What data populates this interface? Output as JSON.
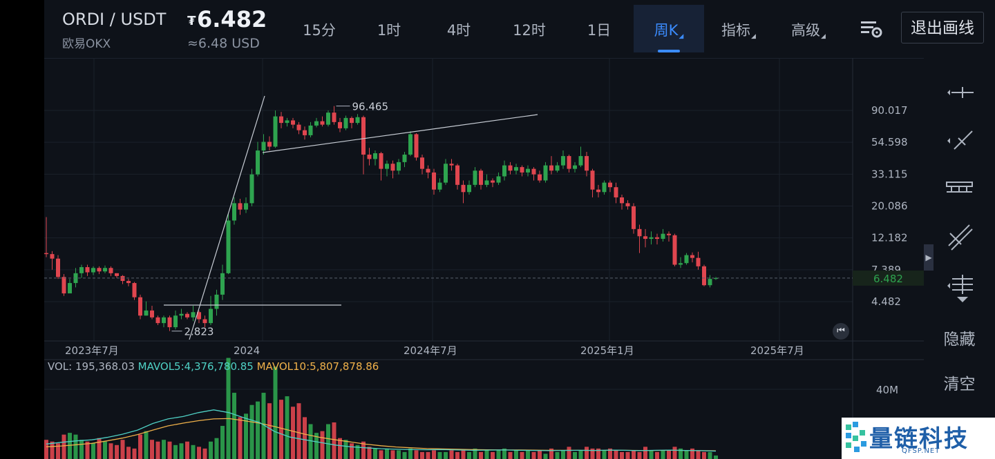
{
  "header": {
    "pair": "ORDI / USDT",
    "exchange": "欧易OKX",
    "price_symbol": "₮",
    "price": "6.482",
    "price_usd": "≈6.48 USD",
    "tabs": [
      {
        "label": "15分"
      },
      {
        "label": "1时"
      },
      {
        "label": "4时"
      },
      {
        "label": "12时"
      },
      {
        "label": "1日"
      },
      {
        "label": "周K",
        "active": true
      },
      {
        "label": "指标"
      },
      {
        "label": "高级"
      }
    ],
    "exit_draw": "退出画线"
  },
  "side_tools": {
    "tool_icons": [
      "horizontal-ray-icon",
      "trend-line-icon",
      "price-range-icon",
      "parallel-channel-icon",
      "fib-lines-icon"
    ],
    "hide": "隐藏",
    "clear": "清空"
  },
  "colors": {
    "up": "#2ea44f",
    "down": "#e0464f",
    "accent": "#3b8cff",
    "mavol5": "#4fd1c5",
    "mavol10": "#f0b14a"
  },
  "chart_data": {
    "type": "candlestick",
    "y_scale": "log",
    "y_ticks": [
      "90.017",
      "54.598",
      "33.115",
      "20.086",
      "12.182",
      "7.389",
      "4.482"
    ],
    "x_ticks": [
      "2023年7月",
      "2024",
      "2024年7月",
      "2025年1月",
      "2025年7月"
    ],
    "high_label": "96.465",
    "low_label": "2.823",
    "current_price_label": "6.482",
    "vol_label": "VOL: 195,368.03",
    "mavol5_label": "MAVOL5:4,376,780.85",
    "mavol10_label": "MAVOL10:5,807,878.86",
    "vol_axis_label": "40M",
    "candles": [
      [
        9.6,
        9.45,
        16.9,
        9.0
      ],
      [
        9.45,
        8.8,
        9.9,
        7.4
      ],
      [
        8.8,
        6.6,
        9.3,
        6.4
      ],
      [
        6.6,
        5.1,
        6.9,
        4.9
      ],
      [
        5.1,
        6.0,
        6.4,
        5.2
      ],
      [
        6.0,
        7.0,
        7.6,
        5.6
      ],
      [
        7.0,
        7.7,
        8.0,
        6.5
      ],
      [
        7.7,
        7.1,
        8.0,
        6.7
      ],
      [
        7.1,
        7.6,
        7.8,
        6.8
      ],
      [
        7.6,
        7.2,
        7.8,
        6.9
      ],
      [
        7.2,
        7.6,
        7.9,
        7.0
      ],
      [
        7.6,
        7.0,
        7.8,
        6.7
      ],
      [
        7.0,
        6.7,
        7.0,
        6.5
      ],
      [
        6.7,
        6.2,
        6.8,
        5.9
      ],
      [
        6.2,
        6.0,
        6.4,
        5.7
      ],
      [
        6.0,
        4.8,
        6.1,
        4.6
      ],
      [
        4.8,
        3.6,
        5.0,
        3.4
      ],
      [
        3.6,
        3.9,
        4.5,
        3.6
      ],
      [
        3.9,
        3.5,
        4.2,
        3.4
      ],
      [
        3.5,
        3.2,
        3.6,
        3.1
      ],
      [
        3.2,
        3.5,
        3.6,
        3.0
      ],
      [
        3.5,
        3.0,
        3.6,
        2.823
      ],
      [
        3.0,
        3.6,
        3.9,
        2.9
      ],
      [
        3.6,
        3.7,
        4.0,
        3.4
      ],
      [
        3.7,
        3.5,
        3.8,
        3.4
      ],
      [
        3.5,
        3.8,
        4.2,
        3.3
      ],
      [
        3.8,
        3.4,
        3.9,
        3.2
      ],
      [
        3.4,
        3.2,
        3.6,
        3.0
      ],
      [
        3.2,
        4.0,
        4.9,
        3.1
      ],
      [
        4.0,
        5.0,
        5.4,
        3.6
      ],
      [
        5.0,
        7.0,
        8.0,
        4.6
      ],
      [
        7.0,
        16.0,
        18.0,
        6.9
      ],
      [
        16.0,
        21.0,
        23.0,
        15.0
      ],
      [
        21.0,
        19.0,
        22.5,
        17.5
      ],
      [
        19.0,
        21.0,
        23.0,
        18.0
      ],
      [
        21.0,
        33.0,
        36.0,
        20.0
      ],
      [
        33.0,
        48.0,
        55.0,
        32.0
      ],
      [
        48.0,
        55.0,
        62.0,
        45.0
      ],
      [
        55.0,
        51.0,
        60.0,
        48.0
      ],
      [
        51.0,
        82.0,
        90.0,
        50.0
      ],
      [
        82.0,
        74.0,
        88.0,
        68.0
      ],
      [
        74.0,
        77.0,
        80.0,
        70.0
      ],
      [
        77.0,
        72.0,
        80.0,
        68.0
      ],
      [
        72.0,
        66.0,
        75.0,
        62.0
      ],
      [
        66.0,
        61.0,
        70.0,
        57.0
      ],
      [
        61.0,
        71.0,
        75.0,
        59.0
      ],
      [
        71.0,
        76.0,
        80.0,
        69.0
      ],
      [
        76.0,
        72.0,
        82.0,
        70.0
      ],
      [
        72.0,
        87.0,
        90.0,
        70.0
      ],
      [
        87.0,
        75.0,
        96.465,
        72.0
      ],
      [
        75.0,
        68.0,
        80.0,
        64.0
      ],
      [
        68.0,
        80.0,
        83.0,
        66.0
      ],
      [
        80.0,
        74.0,
        82.0,
        68.0
      ],
      [
        74.0,
        81.0,
        85.0,
        72.0
      ],
      [
        81.0,
        45.0,
        83.0,
        33.0
      ],
      [
        45.0,
        42.0,
        50.0,
        38.0
      ],
      [
        42.0,
        46.0,
        48.0,
        38.0
      ],
      [
        46.0,
        36.0,
        47.0,
        30.0
      ],
      [
        36.0,
        39.0,
        41.0,
        32.0
      ],
      [
        39.0,
        35.0,
        41.0,
        31.0
      ],
      [
        35.0,
        40.0,
        42.0,
        33.0
      ],
      [
        40.0,
        45.0,
        47.0,
        37.0
      ],
      [
        45.0,
        62.0,
        65.0,
        44.0
      ],
      [
        62.0,
        43.0,
        63.0,
        41.0
      ],
      [
        43.0,
        36.0,
        45.0,
        33.0
      ],
      [
        36.0,
        34.0,
        38.0,
        31.0
      ],
      [
        34.0,
        26.0,
        36.0,
        24.0
      ],
      [
        26.0,
        29.0,
        31.0,
        25.0
      ],
      [
        29.0,
        39.0,
        42.0,
        28.0
      ],
      [
        39.0,
        38.0,
        42.0,
        35.0
      ],
      [
        38.0,
        28.0,
        39.0,
        26.0
      ],
      [
        28.0,
        25.0,
        30.0,
        21.0
      ],
      [
        25.0,
        28.0,
        30.0,
        24.0
      ],
      [
        28.0,
        35.0,
        37.0,
        27.0
      ],
      [
        35.0,
        28.0,
        36.0,
        26.0
      ],
      [
        28.0,
        30.0,
        33.0,
        27.0
      ],
      [
        30.0,
        29.0,
        31.0,
        27.0
      ],
      [
        29.0,
        32.0,
        34.0,
        28.0
      ],
      [
        32.0,
        38.0,
        41.0,
        30.0
      ],
      [
        38.0,
        35.0,
        40.0,
        33.0
      ],
      [
        35.0,
        37.0,
        39.0,
        33.0
      ],
      [
        37.0,
        34.0,
        38.0,
        32.0
      ],
      [
        34.0,
        36.0,
        38.0,
        32.0
      ],
      [
        36.0,
        33.0,
        37.0,
        30.0
      ],
      [
        33.0,
        30.0,
        35.0,
        29.0
      ],
      [
        30.0,
        38.0,
        40.0,
        29.0
      ],
      [
        38.0,
        35.0,
        44.0,
        33.0
      ],
      [
        35.0,
        38.0,
        40.0,
        34.0
      ],
      [
        38.0,
        44.0,
        48.0,
        36.0
      ],
      [
        44.0,
        36.0,
        45.0,
        34.0
      ],
      [
        36.0,
        38.0,
        40.0,
        34.0
      ],
      [
        38.0,
        44.0,
        51.0,
        37.0
      ],
      [
        44.0,
        35.0,
        47.0,
        32.0
      ],
      [
        35.0,
        26.0,
        36.0,
        23.0
      ],
      [
        26.0,
        25.0,
        28.0,
        23.0
      ],
      [
        25.0,
        29.0,
        30.0,
        24.0
      ],
      [
        29.0,
        27.0,
        30.0,
        25.0
      ],
      [
        27.0,
        23.0,
        29.0,
        21.0
      ],
      [
        23.0,
        21.0,
        24.0,
        19.0
      ],
      [
        21.0,
        20.0,
        22.0,
        19.0
      ],
      [
        20.0,
        14.0,
        21.0,
        13.0
      ],
      [
        14.0,
        12.5,
        15.0,
        9.6
      ],
      [
        12.5,
        12.0,
        14.0,
        10.5
      ],
      [
        12.0,
        12.3,
        13.5,
        11.0
      ],
      [
        12.3,
        12.0,
        13.0,
        11.0
      ],
      [
        12.0,
        13.0,
        14.0,
        11.5
      ],
      [
        13.0,
        12.7,
        13.5,
        11.5
      ],
      [
        12.7,
        8.0,
        13.0,
        7.8
      ],
      [
        8.0,
        8.2,
        9.0,
        7.6
      ],
      [
        8.2,
        9.3,
        9.6,
        8.0
      ],
      [
        9.3,
        8.9,
        9.7,
        8.3
      ],
      [
        8.9,
        7.8,
        9.8,
        7.4
      ],
      [
        7.8,
        5.8,
        8.0,
        5.7
      ],
      [
        5.8,
        6.4,
        6.8,
        5.6
      ],
      [
        6.4,
        6.48,
        6.6,
        6.3
      ]
    ],
    "volumes": [
      11,
      10,
      9,
      14,
      15,
      14,
      11,
      10,
      9,
      12,
      10,
      9,
      8,
      11,
      7,
      6,
      14,
      16,
      11,
      10,
      11,
      10,
      8,
      9,
      10,
      8,
      7,
      6,
      10,
      12,
      19,
      58,
      38,
      24,
      26,
      31,
      33,
      38,
      32,
      53,
      34,
      36,
      30,
      32,
      24,
      20,
      15,
      16,
      20,
      21,
      12,
      11,
      9,
      8,
      10,
      7,
      6,
      5,
      6,
      5,
      5,
      4,
      6,
      5,
      4,
      4,
      5,
      4,
      4,
      5,
      4,
      5,
      4,
      6,
      4,
      5,
      4,
      5,
      6,
      4,
      5,
      4,
      5,
      4,
      5,
      3,
      6,
      4,
      5,
      7,
      4,
      5,
      7,
      6,
      6,
      5,
      6,
      5,
      4,
      4,
      5,
      4,
      7,
      5,
      4,
      5,
      5,
      7,
      6,
      5,
      6,
      5,
      4,
      4,
      2
    ],
    "mavol5": [
      8.6,
      9.6,
      10.4,
      11.0,
      12.4,
      14.2,
      16.6,
      20.4,
      23.0,
      24.4,
      26.6,
      28.2,
      26.6,
      23.6,
      21.0,
      15.8,
      12.6,
      11.0,
      9.5,
      8.0,
      7.0,
      6.4,
      5.9,
      5.6,
      5.4,
      5.3,
      5.4,
      5.2,
      5.0,
      5.1,
      5.2,
      5.0,
      4.9,
      4.8,
      4.9,
      5.0,
      4.9,
      5.1,
      5.0,
      4.8,
      5.0,
      5.1,
      4.9,
      4.8,
      4.5
    ],
    "mavol10": [
      7.0,
      7.5,
      8.2,
      9.0,
      10.4,
      12.0,
      14.0,
      16.6,
      19.0,
      20.6,
      22.0,
      23.0,
      23.2,
      22.0,
      20.6,
      18.6,
      16.4,
      14.2,
      12.4,
      11.0,
      9.8,
      8.5,
      7.6,
      6.9,
      6.4,
      6.0,
      5.8,
      5.6,
      5.4,
      5.3,
      5.2,
      5.2,
      5.1,
      5.0,
      5.0,
      5.0,
      4.9,
      5.0,
      5.0,
      4.9,
      4.9,
      5.0,
      4.9,
      4.8,
      4.7
    ]
  },
  "watermark": {
    "text": "量链科技",
    "sub": "QFSP.NET"
  }
}
